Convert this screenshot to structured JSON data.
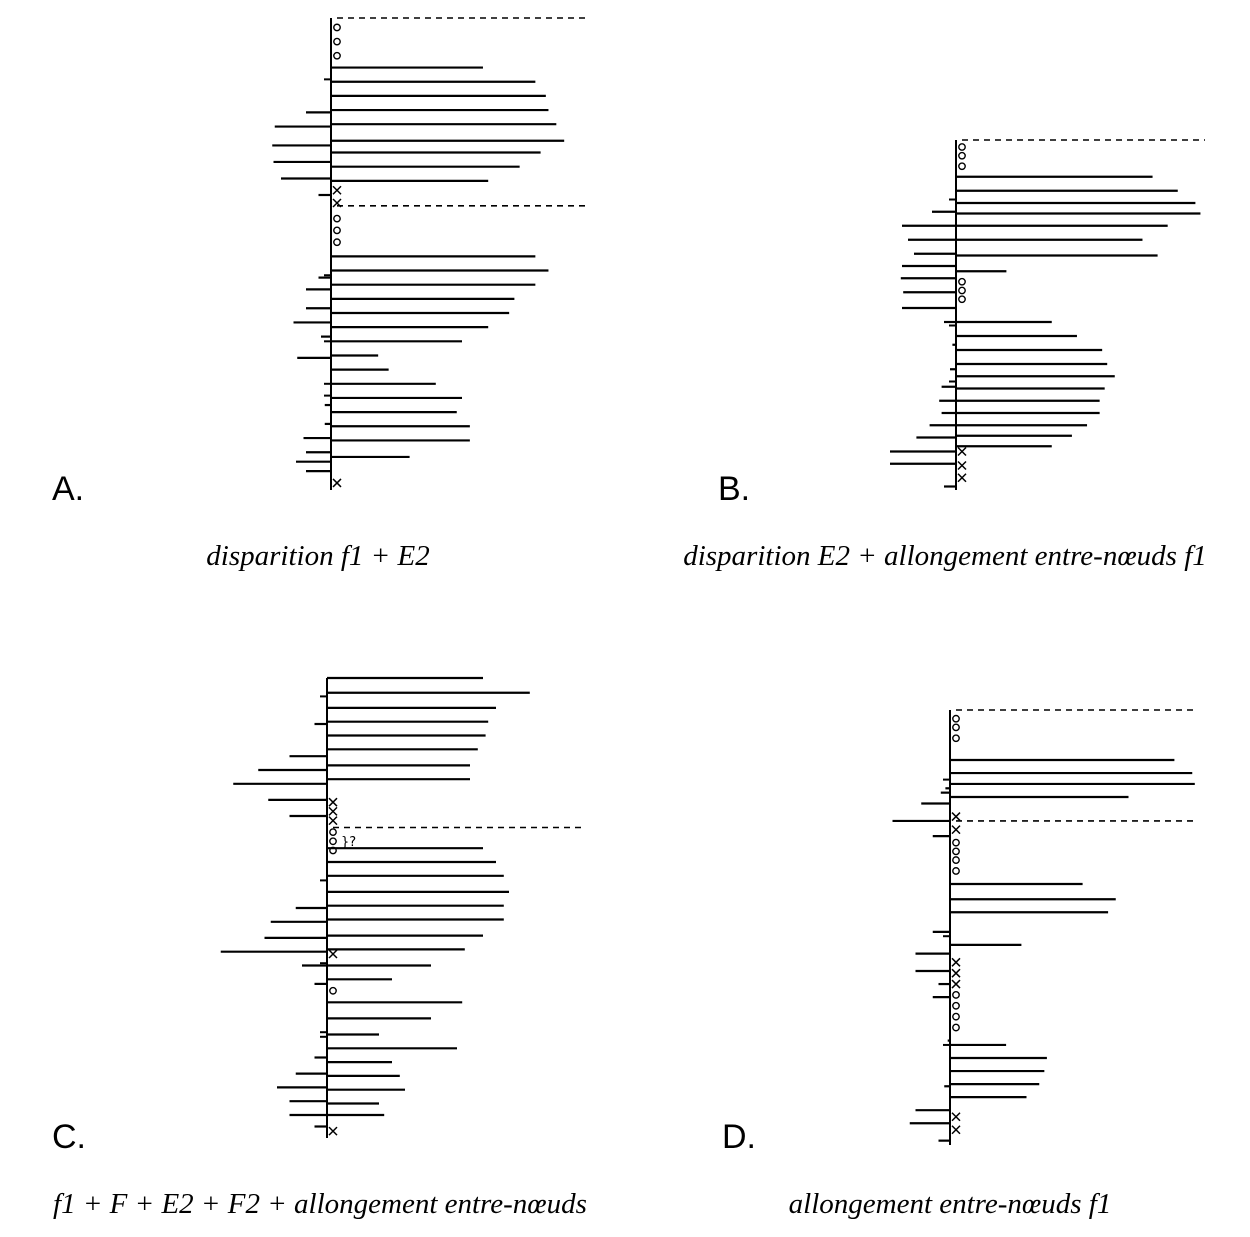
{
  "panels": [
    {
      "letter": "A.",
      "caption": "disparition f1 + E2",
      "markers": [
        {
          "y": 0.02,
          "k": "o"
        },
        {
          "y": 0.05,
          "k": "o"
        },
        {
          "y": 0.08,
          "k": "o"
        },
        {
          "y": 0.365,
          "k": "x"
        },
        {
          "y": 0.392,
          "k": "x"
        },
        {
          "y": 0.425,
          "k": "o"
        },
        {
          "y": 0.45,
          "k": "o"
        },
        {
          "y": 0.475,
          "k": "o"
        },
        {
          "y": 0.985,
          "k": "x"
        }
      ],
      "right": [
        {
          "y": 0.105,
          "l": 0.58
        },
        {
          "y": 0.135,
          "l": 0.78
        },
        {
          "y": 0.165,
          "l": 0.82
        },
        {
          "y": 0.195,
          "l": 0.83
        },
        {
          "y": 0.225,
          "l": 0.86
        },
        {
          "y": 0.26,
          "l": 0.89
        },
        {
          "y": 0.285,
          "l": 0.8
        },
        {
          "y": 0.315,
          "l": 0.72
        },
        {
          "y": 0.345,
          "l": 0.6
        },
        {
          "y": 0.505,
          "l": 0.78
        },
        {
          "y": 0.535,
          "l": 0.83
        },
        {
          "y": 0.565,
          "l": 0.78
        },
        {
          "y": 0.595,
          "l": 0.7
        },
        {
          "y": 0.625,
          "l": 0.68
        },
        {
          "y": 0.655,
          "l": 0.6
        },
        {
          "y": 0.685,
          "l": 0.5
        },
        {
          "y": 0.715,
          "l": 0.18
        },
        {
          "y": 0.745,
          "l": 0.22
        },
        {
          "y": 0.775,
          "l": 0.4
        },
        {
          "y": 0.805,
          "l": 0.5
        },
        {
          "y": 0.835,
          "l": 0.48
        },
        {
          "y": 0.865,
          "l": 0.53
        },
        {
          "y": 0.895,
          "l": 0.53
        },
        {
          "y": 0.93,
          "l": 0.3
        }
      ],
      "left": [
        {
          "y": 0.2,
          "l": 0.2
        },
        {
          "y": 0.23,
          "l": 0.45
        },
        {
          "y": 0.27,
          "l": 0.47
        },
        {
          "y": 0.305,
          "l": 0.46
        },
        {
          "y": 0.34,
          "l": 0.4
        },
        {
          "y": 0.375,
          "l": 0.1
        },
        {
          "y": 0.55,
          "l": 0.1
        },
        {
          "y": 0.575,
          "l": 0.2
        },
        {
          "y": 0.615,
          "l": 0.2
        },
        {
          "y": 0.645,
          "l": 0.3
        },
        {
          "y": 0.675,
          "l": 0.08
        },
        {
          "y": 0.72,
          "l": 0.27
        },
        {
          "y": 0.82,
          "l": 0.05
        },
        {
          "y": 0.86,
          "l": 0.05
        },
        {
          "y": 0.89,
          "l": 0.22
        },
        {
          "y": 0.92,
          "l": 0.2
        },
        {
          "y": 0.94,
          "l": 0.28
        },
        {
          "y": 0.96,
          "l": 0.2
        }
      ],
      "ticks": [
        0.13,
        0.545,
        0.685,
        0.775,
        0.8
      ],
      "dashed": [
        0.0,
        0.398
      ]
    },
    {
      "letter": "B.",
      "caption": "disparition E2 + allongement entre-nœuds f1",
      "markers": [
        {
          "y": 0.02,
          "k": "o"
        },
        {
          "y": 0.045,
          "k": "o"
        },
        {
          "y": 0.075,
          "k": "o"
        },
        {
          "y": 0.405,
          "k": "o"
        },
        {
          "y": 0.43,
          "k": "o"
        },
        {
          "y": 0.455,
          "k": "o"
        },
        {
          "y": 0.89,
          "k": "x"
        },
        {
          "y": 0.93,
          "k": "x"
        },
        {
          "y": 0.965,
          "k": "x"
        }
      ],
      "right": [
        {
          "y": 0.105,
          "l": 0.78
        },
        {
          "y": 0.145,
          "l": 0.88
        },
        {
          "y": 0.18,
          "l": 0.95
        },
        {
          "y": 0.21,
          "l": 0.97
        },
        {
          "y": 0.245,
          "l": 0.84
        },
        {
          "y": 0.285,
          "l": 0.74
        },
        {
          "y": 0.33,
          "l": 0.8
        },
        {
          "y": 0.375,
          "l": 0.2
        },
        {
          "y": 0.52,
          "l": 0.38
        },
        {
          "y": 0.56,
          "l": 0.48
        },
        {
          "y": 0.6,
          "l": 0.58
        },
        {
          "y": 0.64,
          "l": 0.6
        },
        {
          "y": 0.675,
          "l": 0.63
        },
        {
          "y": 0.71,
          "l": 0.59
        },
        {
          "y": 0.745,
          "l": 0.57
        },
        {
          "y": 0.78,
          "l": 0.57
        },
        {
          "y": 0.815,
          "l": 0.52
        },
        {
          "y": 0.845,
          "l": 0.46
        },
        {
          "y": 0.875,
          "l": 0.38
        }
      ],
      "left": [
        {
          "y": 0.205,
          "l": 0.2
        },
        {
          "y": 0.245,
          "l": 0.45
        },
        {
          "y": 0.285,
          "l": 0.4
        },
        {
          "y": 0.325,
          "l": 0.35
        },
        {
          "y": 0.36,
          "l": 0.45
        },
        {
          "y": 0.395,
          "l": 0.46
        },
        {
          "y": 0.435,
          "l": 0.44
        },
        {
          "y": 0.48,
          "l": 0.45
        },
        {
          "y": 0.52,
          "l": 0.1
        },
        {
          "y": 0.585,
          "l": 0.03
        },
        {
          "y": 0.655,
          "l": 0.05
        },
        {
          "y": 0.705,
          "l": 0.12
        },
        {
          "y": 0.745,
          "l": 0.14
        },
        {
          "y": 0.78,
          "l": 0.12
        },
        {
          "y": 0.815,
          "l": 0.22
        },
        {
          "y": 0.85,
          "l": 0.33
        },
        {
          "y": 0.89,
          "l": 0.55
        },
        {
          "y": 0.925,
          "l": 0.55
        },
        {
          "y": 0.99,
          "l": 0.1
        }
      ],
      "ticks": [
        0.17,
        0.53,
        0.69
      ],
      "dashed": [
        0.0
      ]
    },
    {
      "letter": "C.",
      "caption": "f1 + F + E2 + F2 + allongement entre-nœuds",
      "markers": [
        {
          "y": 0.27,
          "k": "x"
        },
        {
          "y": 0.29,
          "k": "x"
        },
        {
          "y": 0.31,
          "k": "x"
        },
        {
          "y": 0.335,
          "k": "o"
        },
        {
          "y": 0.355,
          "k": "o"
        },
        {
          "y": 0.375,
          "k": "o"
        },
        {
          "y": 0.6,
          "k": "x"
        },
        {
          "y": 0.68,
          "k": "o"
        },
        {
          "y": 0.985,
          "k": "x"
        }
      ],
      "right": [
        {
          "y": 0.0,
          "l": 0.6
        },
        {
          "y": 0.032,
          "l": 0.78
        },
        {
          "y": 0.065,
          "l": 0.65
        },
        {
          "y": 0.095,
          "l": 0.62
        },
        {
          "y": 0.125,
          "l": 0.61
        },
        {
          "y": 0.155,
          "l": 0.58
        },
        {
          "y": 0.19,
          "l": 0.55
        },
        {
          "y": 0.22,
          "l": 0.55
        },
        {
          "y": 0.37,
          "l": 0.6
        },
        {
          "y": 0.4,
          "l": 0.65
        },
        {
          "y": 0.43,
          "l": 0.68
        },
        {
          "y": 0.465,
          "l": 0.7
        },
        {
          "y": 0.495,
          "l": 0.68
        },
        {
          "y": 0.525,
          "l": 0.68
        },
        {
          "y": 0.56,
          "l": 0.6
        },
        {
          "y": 0.59,
          "l": 0.53
        },
        {
          "y": 0.625,
          "l": 0.4
        },
        {
          "y": 0.655,
          "l": 0.25
        },
        {
          "y": 0.705,
          "l": 0.52
        },
        {
          "y": 0.74,
          "l": 0.4
        },
        {
          "y": 0.775,
          "l": 0.2
        },
        {
          "y": 0.805,
          "l": 0.5
        },
        {
          "y": 0.835,
          "l": 0.25
        },
        {
          "y": 0.865,
          "l": 0.28
        },
        {
          "y": 0.895,
          "l": 0.3
        },
        {
          "y": 0.925,
          "l": 0.2
        },
        {
          "y": 0.95,
          "l": 0.22
        }
      ],
      "left": [
        {
          "y": 0.1,
          "l": 0.1
        },
        {
          "y": 0.17,
          "l": 0.3
        },
        {
          "y": 0.2,
          "l": 0.55
        },
        {
          "y": 0.23,
          "l": 0.75
        },
        {
          "y": 0.265,
          "l": 0.47
        },
        {
          "y": 0.3,
          "l": 0.3
        },
        {
          "y": 0.5,
          "l": 0.25
        },
        {
          "y": 0.53,
          "l": 0.45
        },
        {
          "y": 0.565,
          "l": 0.5
        },
        {
          "y": 0.595,
          "l": 0.85
        },
        {
          "y": 0.625,
          "l": 0.2
        },
        {
          "y": 0.665,
          "l": 0.1
        },
        {
          "y": 0.825,
          "l": 0.1
        },
        {
          "y": 0.86,
          "l": 0.25
        },
        {
          "y": 0.89,
          "l": 0.4
        },
        {
          "y": 0.92,
          "l": 0.3
        },
        {
          "y": 0.95,
          "l": 0.3
        },
        {
          "y": 0.975,
          "l": 0.1
        }
      ],
      "ticks": [
        0.04,
        0.44,
        0.62,
        0.77,
        0.78
      ],
      "dashed": [
        0.325
      ],
      "annotation": "}?"
    },
    {
      "letter": "D.",
      "caption": "allongement entre-nœuds f1",
      "markers": [
        {
          "y": 0.02,
          "k": "o"
        },
        {
          "y": 0.04,
          "k": "o"
        },
        {
          "y": 0.065,
          "k": "o"
        },
        {
          "y": 0.245,
          "k": "x"
        },
        {
          "y": 0.275,
          "k": "x"
        },
        {
          "y": 0.305,
          "k": "o"
        },
        {
          "y": 0.325,
          "k": "o"
        },
        {
          "y": 0.345,
          "k": "o"
        },
        {
          "y": 0.37,
          "k": "o"
        },
        {
          "y": 0.58,
          "k": "x"
        },
        {
          "y": 0.605,
          "k": "x"
        },
        {
          "y": 0.63,
          "k": "x"
        },
        {
          "y": 0.655,
          "k": "o"
        },
        {
          "y": 0.68,
          "k": "o"
        },
        {
          "y": 0.705,
          "k": "o"
        },
        {
          "y": 0.73,
          "k": "o"
        },
        {
          "y": 0.935,
          "k": "x"
        },
        {
          "y": 0.965,
          "k": "x"
        }
      ],
      "right": [
        {
          "y": 0.115,
          "l": 0.88
        },
        {
          "y": 0.145,
          "l": 0.95
        },
        {
          "y": 0.17,
          "l": 0.96
        },
        {
          "y": 0.2,
          "l": 0.7
        },
        {
          "y": 0.4,
          "l": 0.52
        },
        {
          "y": 0.435,
          "l": 0.65
        },
        {
          "y": 0.465,
          "l": 0.62
        },
        {
          "y": 0.54,
          "l": 0.28
        },
        {
          "y": 0.77,
          "l": 0.22
        },
        {
          "y": 0.8,
          "l": 0.38
        },
        {
          "y": 0.83,
          "l": 0.37
        },
        {
          "y": 0.86,
          "l": 0.35
        },
        {
          "y": 0.89,
          "l": 0.3
        }
      ],
      "left": [
        {
          "y": 0.18,
          "l": 0.04
        },
        {
          "y": 0.19,
          "l": 0.08
        },
        {
          "y": 0.215,
          "l": 0.25
        },
        {
          "y": 0.255,
          "l": 0.5
        },
        {
          "y": 0.29,
          "l": 0.15
        },
        {
          "y": 0.51,
          "l": 0.15
        },
        {
          "y": 0.56,
          "l": 0.3
        },
        {
          "y": 0.6,
          "l": 0.3
        },
        {
          "y": 0.63,
          "l": 0.1
        },
        {
          "y": 0.66,
          "l": 0.15
        },
        {
          "y": 0.76,
          "l": 0.02
        },
        {
          "y": 0.865,
          "l": 0.05
        },
        {
          "y": 0.92,
          "l": 0.3
        },
        {
          "y": 0.95,
          "l": 0.35
        },
        {
          "y": 0.99,
          "l": 0.1
        }
      ],
      "ticks": [
        0.16,
        0.52,
        0.77
      ],
      "dashed": [
        0.0,
        0.255
      ]
    }
  ]
}
